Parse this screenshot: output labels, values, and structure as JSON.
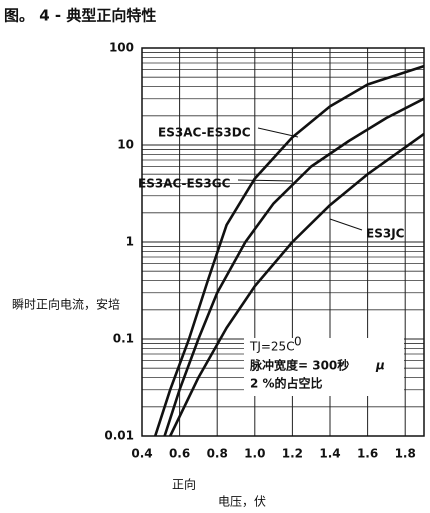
{
  "chart_data": {
    "type": "line",
    "title": "图。 4 - 典型正向特性",
    "y_label": "瞬时正向电流，安培",
    "x_label": [
      "正向",
      "电压，伏"
    ],
    "log_y": true,
    "grid": true,
    "xlim": [
      0.4,
      1.9
    ],
    "xticks": [
      0.4,
      0.6,
      0.8,
      {
        "value": 1.0,
        "label": "1.0"
      },
      1.2,
      1.4,
      1.6,
      1.8
    ],
    "ylim": [
      0.01,
      100
    ],
    "yticks": [
      0.01,
      0.1,
      1,
      10,
      100
    ],
    "series": [
      {
        "name": "ES3AC-ES3DC",
        "color": "#111111",
        "x": [
          0.47,
          0.55,
          0.65,
          0.75,
          0.85,
          1.0,
          1.2,
          1.4,
          1.6,
          1.9
        ],
        "values": [
          0.01,
          0.03,
          0.1,
          0.4,
          1.5,
          4.5,
          12,
          25,
          42,
          65
        ]
      },
      {
        "name": "ES3AC-ES3GC",
        "color": "#111111",
        "x": [
          0.52,
          0.6,
          0.7,
          0.8,
          0.95,
          1.1,
          1.3,
          1.5,
          1.7,
          1.9
        ],
        "values": [
          0.01,
          0.03,
          0.1,
          0.3,
          1,
          2.5,
          6,
          11,
          19,
          30
        ]
      },
      {
        "name": "ES3JC",
        "color": "#111111",
        "x": [
          0.55,
          0.7,
          0.85,
          1.0,
          1.2,
          1.4,
          1.6,
          1.9
        ],
        "values": [
          0.01,
          0.04,
          0.13,
          0.35,
          1,
          2.4,
          5,
          13
        ]
      }
    ],
    "annotations": [
      "TJ=25C",
      "0",
      "脉冲宽度= 300秒",
      "μ",
      "2 %的占空比"
    ]
  }
}
